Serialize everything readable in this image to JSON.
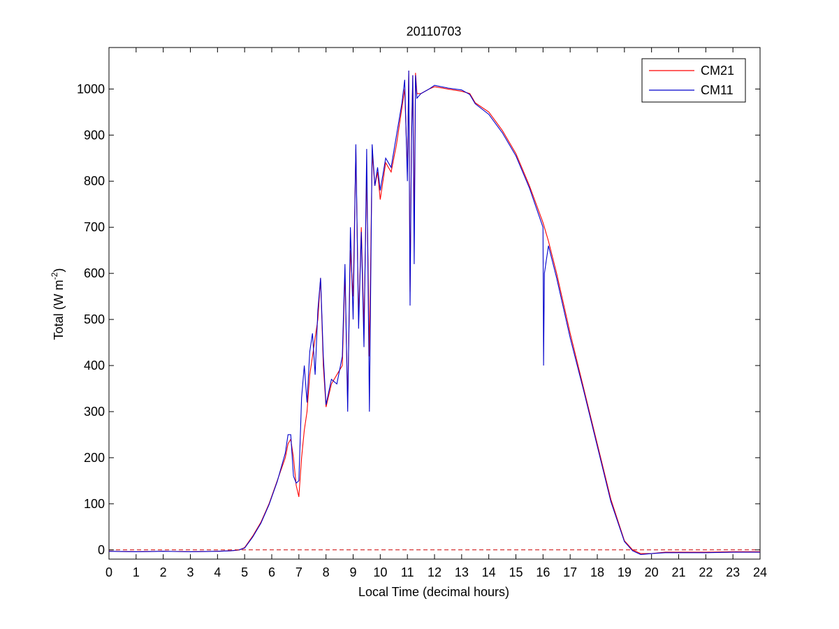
{
  "chart_data": {
    "type": "line",
    "title": "20110703",
    "xlabel": "Local Time (decimal hours)",
    "ylabel": {
      "prefix": "Total (W m",
      "superscript": "-2",
      "suffix": ")"
    },
    "xlim": [
      0,
      24
    ],
    "ylim": [
      -20,
      1090
    ],
    "xticks": [
      0,
      1,
      2,
      3,
      4,
      5,
      6,
      7,
      8,
      9,
      10,
      11,
      12,
      13,
      14,
      15,
      16,
      17,
      18,
      19,
      20,
      21,
      22,
      23,
      24
    ],
    "yticks": [
      0,
      100,
      200,
      300,
      400,
      500,
      600,
      700,
      800,
      900,
      1000
    ],
    "grid": false,
    "legend_position": "top-right",
    "reference_line": {
      "y": 0,
      "color": "#cc0000",
      "style": "dashed"
    },
    "series": [
      {
        "name": "CM21",
        "color": "#ff0000",
        "x": [
          0,
          1,
          2,
          3,
          4,
          4.5,
          4.8,
          5.0,
          5.3,
          5.6,
          5.9,
          6.2,
          6.5,
          6.6,
          6.7,
          6.8,
          6.9,
          7.0,
          7.1,
          7.2,
          7.3,
          7.4,
          7.5,
          7.6,
          7.7,
          7.8,
          7.9,
          8.0,
          8.2,
          8.4,
          8.6,
          8.7,
          8.8,
          8.9,
          9.0,
          9.1,
          9.2,
          9.3,
          9.4,
          9.5,
          9.6,
          9.7,
          9.8,
          9.9,
          10.0,
          10.2,
          10.4,
          10.6,
          10.8,
          10.9,
          11.0,
          11.05,
          11.1,
          11.15,
          11.2,
          11.25,
          11.3,
          11.35,
          11.5,
          11.8,
          12.0,
          12.5,
          13.0,
          13.3,
          13.5,
          14.0,
          14.5,
          15.0,
          15.5,
          16.0,
          16.2,
          16.5,
          17.0,
          17.5,
          18.0,
          18.5,
          19.0,
          19.3,
          19.6,
          20.0,
          20.5,
          21,
          22,
          23,
          24
        ],
        "y": [
          -3,
          -4,
          -3,
          -4,
          -3,
          -2,
          0,
          5,
          30,
          60,
          100,
          150,
          200,
          230,
          240,
          200,
          140,
          115,
          200,
          260,
          300,
          380,
          420,
          460,
          500,
          590,
          400,
          310,
          360,
          380,
          400,
          600,
          320,
          650,
          550,
          870,
          500,
          700,
          480,
          820,
          420,
          860,
          790,
          820,
          760,
          840,
          820,
          880,
          960,
          1000,
          820,
          1040,
          560,
          900,
          1030,
          700,
          1035,
          990,
          990,
          1000,
          1005,
          1000,
          995,
          990,
          970,
          950,
          910,
          860,
          790,
          710,
          670,
          600,
          470,
          350,
          230,
          110,
          20,
          0,
          -8,
          -8,
          -5,
          -5,
          -5,
          -4,
          -4
        ]
      },
      {
        "name": "CM11",
        "color": "#0000cc",
        "x": [
          0,
          1,
          2,
          3,
          4,
          4.5,
          4.8,
          5.0,
          5.3,
          5.6,
          5.9,
          6.2,
          6.5,
          6.6,
          6.7,
          6.8,
          6.9,
          7.0,
          7.1,
          7.2,
          7.3,
          7.4,
          7.5,
          7.6,
          7.7,
          7.8,
          7.9,
          8.0,
          8.2,
          8.4,
          8.6,
          8.7,
          8.8,
          8.9,
          9.0,
          9.1,
          9.2,
          9.3,
          9.4,
          9.5,
          9.6,
          9.7,
          9.8,
          9.9,
          10.0,
          10.2,
          10.4,
          10.6,
          10.8,
          10.9,
          11.0,
          11.05,
          11.1,
          11.15,
          11.2,
          11.25,
          11.3,
          11.35,
          11.5,
          11.8,
          12.0,
          12.5,
          13.0,
          13.3,
          13.5,
          14.0,
          14.5,
          15.0,
          15.5,
          16.0,
          16.02,
          16.05,
          16.2,
          16.5,
          17.0,
          17.5,
          18.0,
          18.5,
          19.0,
          19.3,
          19.6,
          20.0,
          20.5,
          21,
          22,
          23,
          24
        ],
        "y": [
          -3,
          -4,
          -3,
          -4,
          -3,
          -2,
          0,
          4,
          28,
          58,
          98,
          148,
          210,
          250,
          250,
          160,
          145,
          150,
          330,
          400,
          320,
          430,
          470,
          380,
          520,
          590,
          420,
          315,
          370,
          360,
          420,
          620,
          300,
          700,
          500,
          880,
          480,
          690,
          440,
          870,
          300,
          880,
          790,
          830,
          780,
          850,
          830,
          900,
          970,
          1020,
          800,
          1040,
          530,
          880,
          1030,
          620,
          1030,
          980,
          990,
          1000,
          1008,
          1002,
          998,
          988,
          968,
          945,
          905,
          855,
          785,
          700,
          400,
          600,
          660,
          590,
          460,
          345,
          225,
          105,
          18,
          -2,
          -10,
          -8,
          -6,
          -6,
          -6,
          -5,
          -5
        ]
      }
    ]
  }
}
